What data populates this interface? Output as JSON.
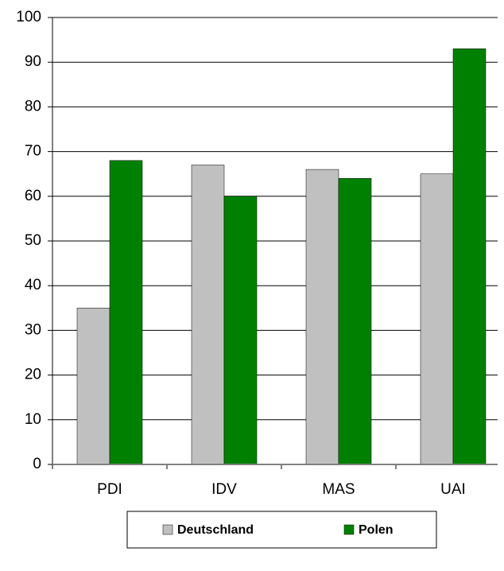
{
  "chart_data": {
    "type": "bar",
    "categories": [
      "PDI",
      "IDV",
      "MAS",
      "UAI"
    ],
    "series": [
      {
        "name": "Deutschland",
        "color": "#c0c0c0",
        "values": [
          35,
          67,
          66,
          65
        ]
      },
      {
        "name": "Polen",
        "color": "#008000",
        "values": [
          68,
          60,
          64,
          93
        ]
      }
    ],
    "ylim": [
      0,
      100
    ],
    "yticks": [
      0,
      10,
      20,
      30,
      40,
      50,
      60,
      70,
      80,
      90,
      100
    ],
    "grid": true
  }
}
